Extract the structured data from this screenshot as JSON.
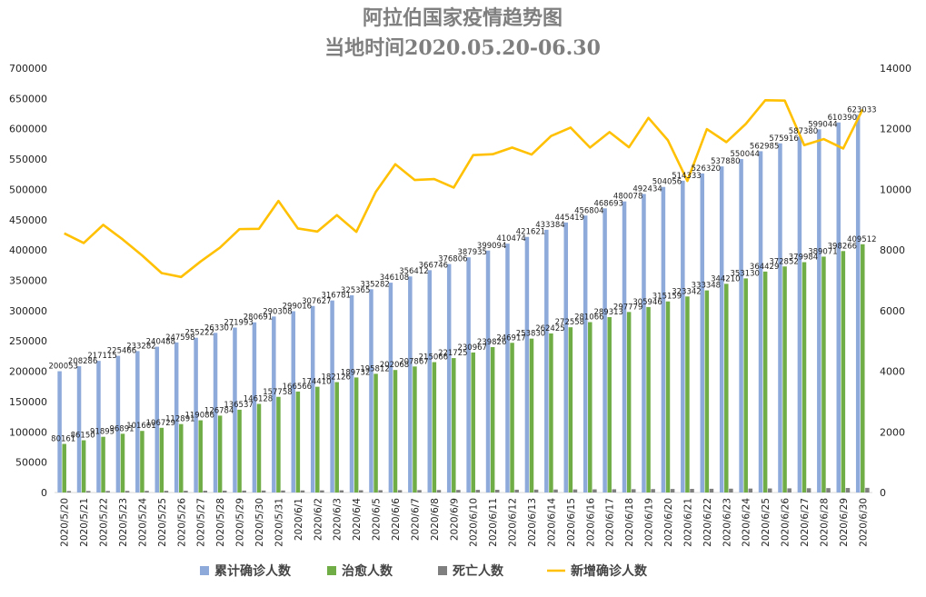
{
  "chart_data": {
    "type": "bar",
    "title_line1": "阿拉伯国家疫情趋势图",
    "title_line2": "当地时间2020.05.20-06.30",
    "categories": [
      "2020/5/20",
      "2020/5/21",
      "2020/5/22",
      "2020/5/23",
      "2020/5/24",
      "2020/5/25",
      "2020/5/26",
      "2020/5/27",
      "2020/5/28",
      "2020/5/29",
      "2020/5/30",
      "2020/5/31",
      "2020/6/1",
      "2020/6/2",
      "2020/6/3",
      "2020/6/4",
      "2020/6/5",
      "2020/6/6",
      "2020/6/7",
      "2020/6/8",
      "2020/6/9",
      "2020/6/10",
      "2020/6/11",
      "2020/6/12",
      "2020/6/13",
      "2020/6/14",
      "2020/6/15",
      "2020/6/16",
      "2020/6/17",
      "2020/6/18",
      "2020/6/19",
      "2020/6/20",
      "2020/6/21",
      "2020/6/22",
      "2020/6/23",
      "2020/6/24",
      "2020/6/25",
      "2020/6/26",
      "2020/6/27",
      "2020/6/28",
      "2020/6/29",
      "2020/6/30"
    ],
    "left_axis": {
      "min": 0,
      "max": 700000,
      "step": 50000
    },
    "right_axis": {
      "min": 0,
      "max": 14000,
      "step": 2000
    },
    "series": [
      {
        "name": "累计确诊人数",
        "type": "bar",
        "axis": "left",
        "color": "#8eaadb",
        "values": [
          200053,
          208286,
          217115,
          225466,
          233282,
          240488,
          247598,
          255222,
          263307,
          271993,
          280691,
          290308,
          299016,
          307627,
          316781,
          325365,
          335282,
          346108,
          356412,
          366746,
          376806,
          387935,
          399094,
          410474,
          421621,
          433384,
          445419,
          456804,
          468693,
          480078,
          492434,
          504056,
          514333,
          526320,
          537880,
          550044,
          562985,
          575916,
          587380,
          599044,
          610390,
          623033
        ]
      },
      {
        "name": "治愈人数",
        "type": "bar",
        "axis": "left",
        "color": "#70ad47",
        "values": [
          80161,
          86150,
          91895,
          96891,
          101601,
          106729,
          112891,
          119086,
          126784,
          136537,
          146128,
          157758,
          166566,
          174410,
          182126,
          189732,
          195812,
          202068,
          207867,
          215066,
          221725,
          230967,
          239826,
          246917,
          253830,
          262425,
          272558,
          281066,
          289313,
          297779,
          305946,
          315159,
          323342,
          333348,
          344210,
          353130,
          364429,
          372852,
          379984,
          389071,
          398266,
          409512
        ]
      },
      {
        "name": "死亡人数",
        "type": "bar",
        "axis": "left",
        "color": "#7f7f7f",
        "values": [
          2450,
          2520,
          2600,
          2680,
          2750,
          2830,
          2900,
          2990,
          3080,
          3170,
          3260,
          3350,
          3430,
          3520,
          3610,
          3700,
          3800,
          3910,
          4020,
          4130,
          4250,
          4370,
          4490,
          4620,
          4760,
          4900,
          5040,
          5190,
          5340,
          5490,
          5650,
          5810,
          5970,
          6140,
          6320,
          6500,
          6690,
          6880,
          7070,
          7270,
          7470,
          7680
        ]
      },
      {
        "name": "新增确诊人数",
        "type": "line",
        "axis": "right",
        "color": "#ffc000",
        "values": [
          8550,
          8230,
          8830,
          8350,
          7820,
          7240,
          7110,
          7620,
          8080,
          8690,
          8700,
          9620,
          8710,
          8610,
          9150,
          8600,
          9920,
          10830,
          10310,
          10340,
          10060,
          11130,
          11160,
          11380,
          11150,
          11760,
          12040,
          11380,
          11890,
          11390,
          12360,
          11620,
          10280,
          11990,
          11560,
          12160,
          12940,
          12930,
          11460,
          11660,
          11350,
          12640
        ]
      }
    ],
    "legend_position": "bottom",
    "grid": false
  }
}
